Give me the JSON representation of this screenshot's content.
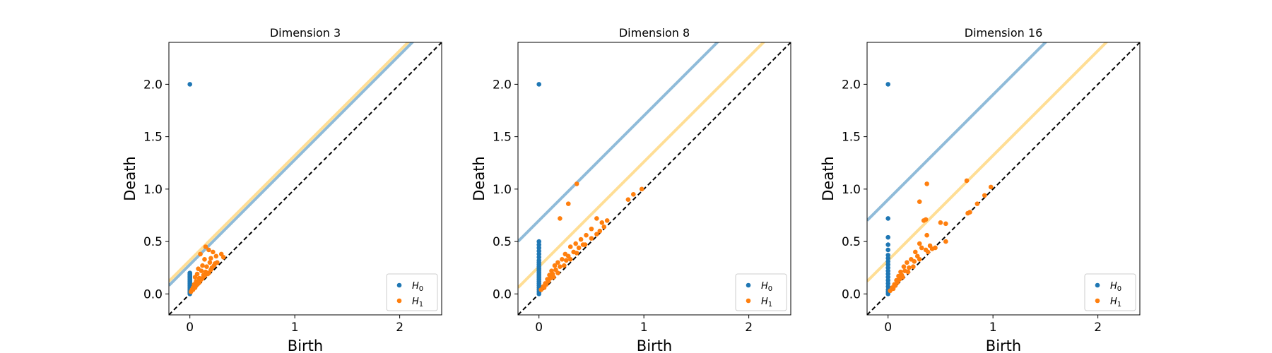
{
  "colors": {
    "h0": "#1f77b4",
    "h1": "#ff7f0e",
    "h0_band": "#1f77b4",
    "h1_band": "#ffbe2c",
    "diagonal": "#000000"
  },
  "legend": {
    "h0": "H",
    "h0_sub": "0",
    "h1": "H",
    "h1_sub": "1",
    "placement": "lower-right"
  },
  "chart_data": [
    {
      "type": "scatter",
      "title": "Dimension 3",
      "xlabel": "Birth",
      "ylabel": "Death",
      "xlim": [
        -0.2,
        2.4
      ],
      "ylim": [
        -0.2,
        2.4
      ],
      "xticks": [
        0,
        1,
        2
      ],
      "yticks": [
        0.0,
        0.5,
        1.0,
        1.5,
        2.0
      ],
      "xtick_labels": [
        "0",
        "1",
        "2"
      ],
      "ytick_labels": [
        "0.0",
        "0.5",
        "1.0",
        "1.5",
        "2.0"
      ],
      "band_offsets": {
        "H0": 0.28,
        "H1": 0.32
      },
      "series": [
        {
          "name": "H0",
          "points": [
            [
              0,
              2.0
            ],
            [
              0,
              0.2
            ],
            [
              0,
              0.19
            ],
            [
              0,
              0.18
            ],
            [
              0,
              0.17
            ],
            [
              0,
              0.16
            ],
            [
              0,
              0.15
            ],
            [
              0,
              0.14
            ],
            [
              0,
              0.13
            ],
            [
              0,
              0.12
            ],
            [
              0,
              0.11
            ],
            [
              0,
              0.1
            ],
            [
              0,
              0.09
            ],
            [
              0,
              0.08
            ],
            [
              0,
              0.07
            ],
            [
              0,
              0.06
            ],
            [
              0,
              0.05
            ],
            [
              0,
              0.04
            ],
            [
              0,
              0.03
            ],
            [
              0,
              0.02
            ],
            [
              0,
              0.01
            ],
            [
              0,
              0.0
            ]
          ]
        },
        {
          "name": "H1",
          "points": [
            [
              0.15,
              0.45
            ],
            [
              0.18,
              0.42
            ],
            [
              0.22,
              0.4
            ],
            [
              0.1,
              0.38
            ],
            [
              0.25,
              0.36
            ],
            [
              0.3,
              0.38
            ],
            [
              0.32,
              0.35
            ],
            [
              0.2,
              0.34
            ],
            [
              0.14,
              0.33
            ],
            [
              0.19,
              0.3
            ],
            [
              0.24,
              0.29
            ],
            [
              0.12,
              0.27
            ],
            [
              0.16,
              0.26
            ],
            [
              0.21,
              0.25
            ],
            [
              0.08,
              0.24
            ],
            [
              0.11,
              0.22
            ],
            [
              0.15,
              0.21
            ],
            [
              0.18,
              0.2
            ],
            [
              0.07,
              0.19
            ],
            [
              0.13,
              0.18
            ],
            [
              0.05,
              0.16
            ],
            [
              0.09,
              0.15
            ],
            [
              0.17,
              0.19
            ],
            [
              0.06,
              0.12
            ],
            [
              0.1,
              0.13
            ],
            [
              0.04,
              0.09
            ],
            [
              0.08,
              0.1
            ],
            [
              0.12,
              0.15
            ],
            [
              0.03,
              0.06
            ],
            [
              0.06,
              0.08
            ],
            [
              0.02,
              0.04
            ],
            [
              0.05,
              0.06
            ],
            [
              0.09,
              0.11
            ],
            [
              0.14,
              0.17
            ],
            [
              0.2,
              0.23
            ],
            [
              0.23,
              0.27
            ],
            [
              0.26,
              0.3
            ],
            [
              0.01,
              0.02
            ],
            [
              0.03,
              0.04
            ],
            [
              0.07,
              0.09
            ],
            [
              0.11,
              0.14
            ],
            [
              0.16,
              0.2
            ]
          ]
        }
      ]
    },
    {
      "type": "scatter",
      "title": "Dimension 8",
      "xlabel": "Birth",
      "ylabel": "Death",
      "xlim": [
        -0.2,
        2.4
      ],
      "ylim": [
        -0.2,
        2.4
      ],
      "xticks": [
        0,
        1,
        2
      ],
      "yticks": [
        0.0,
        0.5,
        1.0,
        1.5,
        2.0
      ],
      "xtick_labels": [
        "0",
        "1",
        "2"
      ],
      "ytick_labels": [
        "0.0",
        "0.5",
        "1.0",
        "1.5",
        "2.0"
      ],
      "band_offsets": {
        "H0": 0.7,
        "H1": 0.26
      },
      "series": [
        {
          "name": "H0",
          "points": [
            [
              0,
              2.0
            ],
            [
              0,
              0.5
            ],
            [
              0,
              0.47
            ],
            [
              0,
              0.44
            ],
            [
              0,
              0.41
            ],
            [
              0,
              0.38
            ],
            [
              0,
              0.35
            ],
            [
              0,
              0.32
            ],
            [
              0,
              0.3
            ],
            [
              0,
              0.28
            ],
            [
              0,
              0.26
            ],
            [
              0,
              0.24
            ],
            [
              0,
              0.22
            ],
            [
              0,
              0.2
            ],
            [
              0,
              0.18
            ],
            [
              0,
              0.16
            ],
            [
              0,
              0.14
            ],
            [
              0,
              0.12
            ],
            [
              0,
              0.1
            ],
            [
              0,
              0.08
            ],
            [
              0,
              0.06
            ],
            [
              0,
              0.04
            ],
            [
              0,
              0.02
            ],
            [
              0,
              0.0
            ]
          ]
        },
        {
          "name": "H1",
          "points": [
            [
              0.36,
              1.05
            ],
            [
              0.28,
              0.86
            ],
            [
              0.2,
              0.72
            ],
            [
              0.9,
              0.95
            ],
            [
              0.85,
              0.9
            ],
            [
              0.98,
              1.0
            ],
            [
              0.55,
              0.72
            ],
            [
              0.6,
              0.68
            ],
            [
              0.65,
              0.7
            ],
            [
              0.5,
              0.62
            ],
            [
              0.45,
              0.56
            ],
            [
              0.58,
              0.6
            ],
            [
              0.62,
              0.64
            ],
            [
              0.4,
              0.52
            ],
            [
              0.35,
              0.48
            ],
            [
              0.42,
              0.47
            ],
            [
              0.3,
              0.45
            ],
            [
              0.38,
              0.44
            ],
            [
              0.25,
              0.38
            ],
            [
              0.33,
              0.4
            ],
            [
              0.28,
              0.36
            ],
            [
              0.22,
              0.33
            ],
            [
              0.18,
              0.3
            ],
            [
              0.26,
              0.32
            ],
            [
              0.15,
              0.27
            ],
            [
              0.2,
              0.26
            ],
            [
              0.12,
              0.22
            ],
            [
              0.16,
              0.23
            ],
            [
              0.1,
              0.18
            ],
            [
              0.13,
              0.19
            ],
            [
              0.08,
              0.14
            ],
            [
              0.11,
              0.15
            ],
            [
              0.06,
              0.1
            ],
            [
              0.09,
              0.12
            ],
            [
              0.04,
              0.07
            ],
            [
              0.07,
              0.09
            ],
            [
              0.02,
              0.04
            ],
            [
              0.05,
              0.06
            ],
            [
              0.14,
              0.16
            ],
            [
              0.18,
              0.2
            ],
            [
              0.24,
              0.27
            ],
            [
              0.3,
              0.33
            ],
            [
              0.36,
              0.39
            ],
            [
              0.44,
              0.47
            ],
            [
              0.5,
              0.53
            ],
            [
              0.55,
              0.57
            ]
          ]
        }
      ]
    },
    {
      "type": "scatter",
      "title": "Dimension 16",
      "xlabel": "Birth",
      "ylabel": "Death",
      "xlim": [
        -0.2,
        2.4
      ],
      "ylim": [
        -0.2,
        2.4
      ],
      "xticks": [
        0,
        1,
        2
      ],
      "yticks": [
        0.0,
        0.5,
        1.0,
        1.5,
        2.0
      ],
      "xtick_labels": [
        "0",
        "1",
        "2"
      ],
      "ytick_labels": [
        "0.0",
        "0.5",
        "1.0",
        "1.5",
        "2.0"
      ],
      "band_offsets": {
        "H0": 0.9,
        "H1": 0.32
      },
      "series": [
        {
          "name": "H0",
          "points": [
            [
              0,
              2.0
            ],
            [
              0,
              0.72
            ],
            [
              0,
              0.54
            ],
            [
              0,
              0.47
            ],
            [
              0,
              0.42
            ],
            [
              0,
              0.37
            ],
            [
              0,
              0.34
            ],
            [
              0,
              0.31
            ],
            [
              0,
              0.28
            ],
            [
              0,
              0.25
            ],
            [
              0,
              0.22
            ],
            [
              0,
              0.19
            ],
            [
              0,
              0.16
            ],
            [
              0,
              0.13
            ],
            [
              0,
              0.1
            ],
            [
              0,
              0.07
            ],
            [
              0,
              0.04
            ],
            [
              0,
              0.02
            ],
            [
              0,
              0.0
            ]
          ]
        },
        {
          "name": "H1",
          "points": [
            [
              0.37,
              1.05
            ],
            [
              0.75,
              1.08
            ],
            [
              0.98,
              1.02
            ],
            [
              0.3,
              0.88
            ],
            [
              0.85,
              0.86
            ],
            [
              0.92,
              0.94
            ],
            [
              0.78,
              0.78
            ],
            [
              0.76,
              0.77
            ],
            [
              0.36,
              0.71
            ],
            [
              0.34,
              0.7
            ],
            [
              0.55,
              0.67
            ],
            [
              0.5,
              0.68
            ],
            [
              0.37,
              0.56
            ],
            [
              0.3,
              0.48
            ],
            [
              0.4,
              0.46
            ],
            [
              0.45,
              0.44
            ],
            [
              0.55,
              0.5
            ],
            [
              0.32,
              0.44
            ],
            [
              0.26,
              0.4
            ],
            [
              0.36,
              0.42
            ],
            [
              0.28,
              0.36
            ],
            [
              0.22,
              0.33
            ],
            [
              0.18,
              0.3
            ],
            [
              0.25,
              0.31
            ],
            [
              0.15,
              0.26
            ],
            [
              0.2,
              0.25
            ],
            [
              0.12,
              0.21
            ],
            [
              0.16,
              0.22
            ],
            [
              0.1,
              0.17
            ],
            [
              0.13,
              0.18
            ],
            [
              0.08,
              0.13
            ],
            [
              0.11,
              0.14
            ],
            [
              0.06,
              0.09
            ],
            [
              0.09,
              0.11
            ],
            [
              0.04,
              0.06
            ],
            [
              0.07,
              0.08
            ],
            [
              0.02,
              0.03
            ],
            [
              0.05,
              0.05
            ],
            [
              0.14,
              0.16
            ],
            [
              0.19,
              0.21
            ],
            [
              0.24,
              0.26
            ],
            [
              0.3,
              0.33
            ],
            [
              0.38,
              0.4
            ],
            [
              0.42,
              0.43
            ]
          ]
        }
      ]
    }
  ]
}
